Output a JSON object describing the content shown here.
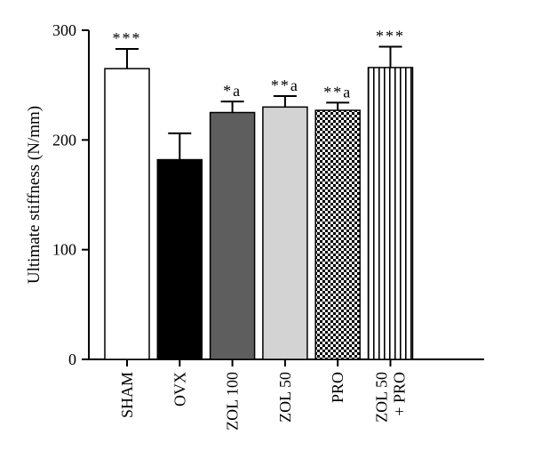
{
  "chart_data": {
    "type": "bar",
    "title": "",
    "xlabel": "",
    "ylabel": "Ultimate stiffness (N/mm)",
    "ylim": [
      0,
      300
    ],
    "yticks": [
      "0",
      "100",
      "200",
      "300"
    ],
    "grid": false,
    "categories": [
      "SHAM",
      "OVX",
      "ZOL 100",
      "ZOL 50",
      "PRO",
      "ZOL 50 + PRO"
    ],
    "category_lines": [
      [
        "SHAM"
      ],
      [
        "OVX"
      ],
      [
        "ZOL 100"
      ],
      [
        "ZOL 50"
      ],
      [
        "PRO"
      ],
      [
        "ZOL 50",
        "+ PRO"
      ]
    ],
    "values": [
      265,
      182,
      225,
      230,
      227,
      266
    ],
    "errors": [
      18,
      24,
      10,
      10,
      7,
      19
    ],
    "annotations": [
      "***",
      "",
      "*a",
      "**a",
      "**a",
      "***"
    ],
    "fills": [
      "white",
      "black",
      "dark-gray",
      "light-gray",
      "checkerboard",
      "vertical-stripes"
    ],
    "colors": {
      "black": "#000000",
      "dark_gray": "#5e5e5e",
      "light_gray": "#d3d3d3",
      "white": "#ffffff"
    }
  }
}
